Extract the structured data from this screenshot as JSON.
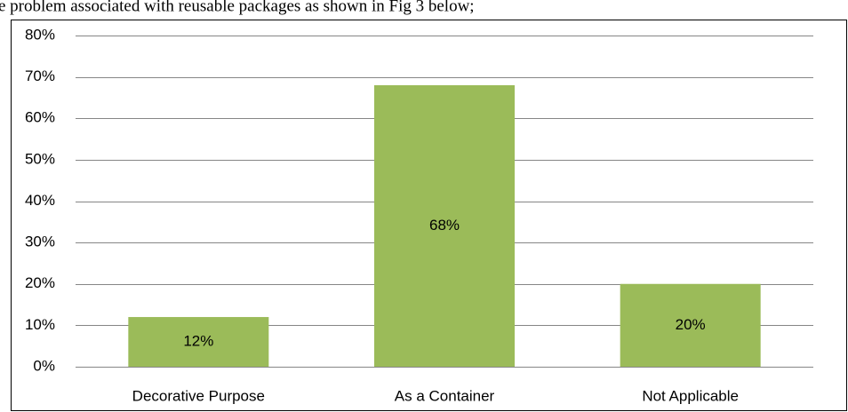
{
  "page_text": "e problem associated with reusable packages as shown in Fig 3 below;",
  "chart_data": {
    "type": "bar",
    "categories": [
      "Decorative Purpose",
      "As a Container",
      "Not Applicable"
    ],
    "values": [
      12,
      68,
      20
    ],
    "value_labels": [
      "12%",
      "68%",
      "20%"
    ],
    "color": "#9bbb59",
    "ylim": [
      0,
      80
    ],
    "yticks": [
      {
        "value": 0,
        "label": "0%"
      },
      {
        "value": 10,
        "label": "10%"
      },
      {
        "value": 20,
        "label": "20%"
      },
      {
        "value": 30,
        "label": "30%"
      },
      {
        "value": 40,
        "label": "40%"
      },
      {
        "value": 50,
        "label": "50%"
      },
      {
        "value": 60,
        "label": "60%"
      },
      {
        "value": 70,
        "label": "70%"
      },
      {
        "value": 80,
        "label": "80%"
      }
    ],
    "grid": true
  }
}
